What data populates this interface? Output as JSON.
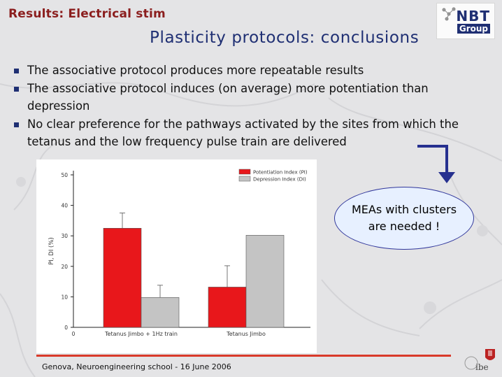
{
  "section_label": "Results: Electrical stim",
  "title": "Plasticity protocols: conclusions",
  "logo": {
    "line1": "NBT",
    "line2": "Group"
  },
  "bullets": [
    "The associative protocol produces more repeatable results",
    "The associative protocol induces (on average) more potentiation than depression",
    "No clear preference for the pathways activated by the sites from which the tetanus and the low frequency pulse train are delivered"
  ],
  "callout": "MEAs with clusters\nare needed !",
  "footer": "Genova, Neuroengineering school - 16 June 2006",
  "corner_logo": "ibe",
  "colors": {
    "accent_red": "#d93a2a",
    "title_blue": "#1f2f73",
    "bullet_blue": "#1f2f73"
  },
  "chart_data": {
    "type": "bar",
    "categories": [
      "Tetanus Jimbo + 1Hz train",
      "Tetanus Jimbo"
    ],
    "series": [
      {
        "name": "Potentiation Index (PI)",
        "values": [
          32.5,
          13.2
        ],
        "errors": [
          5,
          7
        ],
        "color": "#e8171b"
      },
      {
        "name": "Depression Index (DI)",
        "values": [
          9.8,
          30.2
        ],
        "errors": [
          4,
          0
        ],
        "color": "#c4c4c4"
      }
    ],
    "ylabel": "PI, DI (%)",
    "ylim": [
      0,
      50
    ],
    "yticks": [
      0,
      10,
      20,
      30,
      40,
      50
    ],
    "xorigin_label": "0",
    "legend": "top-right",
    "grid": false
  }
}
